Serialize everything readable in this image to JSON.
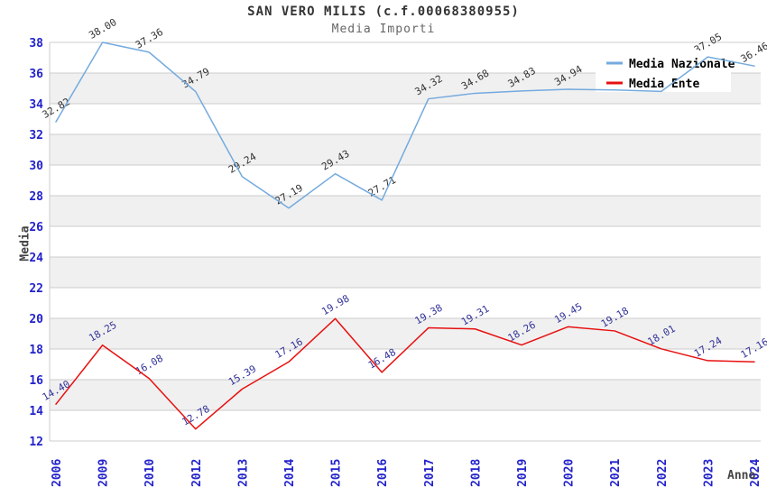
{
  "header": {
    "title": "SAN VERO MILIS (c.f.00068380955)",
    "subtitle": "Media Importi"
  },
  "legend": {
    "position": "top-right-overlay",
    "items": [
      {
        "label": "Media Nazionale",
        "color": "#74aade"
      },
      {
        "label": "Media Ente",
        "color": "#e81010"
      }
    ]
  },
  "chart_data": {
    "type": "line",
    "title": "SAN VERO MILIS (c.f.00068380955)",
    "subtitle": "Media Importi",
    "xlabel": "Anno",
    "ylabel": "Media",
    "ylim": [
      12,
      38
    ],
    "y_ticks": [
      12,
      14,
      16,
      18,
      20,
      22,
      24,
      26,
      28,
      30,
      32,
      34,
      36,
      38
    ],
    "grid": "horizontal gridlines with alternating gray bands",
    "legend_position": "top-right overlay box",
    "categories": [
      "2006",
      "2009",
      "2010",
      "2012",
      "2013",
      "2014",
      "2015",
      "2016",
      "2017",
      "2018",
      "2019",
      "2020",
      "2021",
      "2022",
      "2023",
      "2024"
    ],
    "series": [
      {
        "name": "Media Nazionale",
        "color": "#74aade",
        "label_color": "#333333",
        "values": [
          32.82,
          38.0,
          37.36,
          34.79,
          29.24,
          27.19,
          29.43,
          27.71,
          34.32,
          34.68,
          34.83,
          34.94,
          34.9,
          34.8,
          37.05,
          36.46
        ],
        "labels": [
          "32.82",
          "38.00",
          "37.36",
          "34.79",
          "29.24",
          "27.19",
          "29.43",
          "27.71",
          "34.32",
          "34.68",
          "34.83",
          "34.94",
          null,
          null,
          "37.05",
          "36.46"
        ]
      },
      {
        "name": "Media Ente",
        "color": "#e81010",
        "label_color": "#333399",
        "values": [
          14.4,
          18.25,
          16.08,
          12.78,
          15.39,
          17.16,
          19.98,
          16.48,
          19.38,
          19.31,
          18.26,
          19.45,
          19.18,
          18.01,
          17.24,
          17.16
        ],
        "labels": [
          "14.40",
          "18.25",
          "16.08",
          "12.78",
          "15.39",
          "17.16",
          "19.98",
          "16.48",
          "19.38",
          "19.31",
          "18.26",
          "19.45",
          "19.18",
          "18.01",
          "17.24",
          "17.16"
        ]
      }
    ],
    "colors": {
      "tick_label": "#2222cc",
      "gridline": "#cccccc",
      "band_gray": "#f0f0f0",
      "band_white": "#ffffff",
      "legend_background": "#ffffff",
      "legend_text": "#000000"
    }
  }
}
